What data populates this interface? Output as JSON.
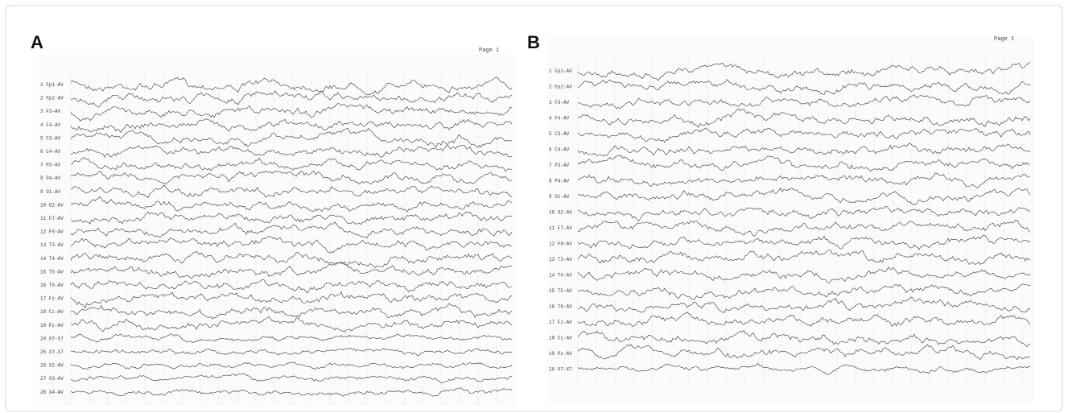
{
  "panels": [
    {
      "label": "A",
      "page": "Page 1",
      "channels": [
        "1 Fp1-AV",
        "2 Fp2-AV",
        "3 F3-AV",
        "4 F4-AV",
        "5 C3-AV",
        "6 C4-AV",
        "7 P3-AV",
        "8 P4-AV",
        "9 O1-AV",
        "10 O2-AV",
        "11 F7-AV",
        "12 F8-AV",
        "13 T3-AV",
        "14 T4-AV",
        "15 T5-AV",
        "16 T6-AV",
        "17 Fz-AV",
        "18 Cz-AV",
        "19 Pz-AV",
        "20 X7-X7",
        "25 X7-X7",
        "26 X2-AV",
        "27 X3-AV",
        "28 X4-AV"
      ]
    },
    {
      "label": "B",
      "page": "Page 1",
      "channels": [
        "1 Fp1-AV",
        "2 Fp2-AV",
        "3 F3-AV",
        "4 F4-AV",
        "5 C3-AV",
        "6 C4-AV",
        "7 P3-AV",
        "8 P4-AV",
        "9 O1-AV",
        "10 O2-AV",
        "11 F7-AV",
        "12 F8-AV",
        "13 T3-AV",
        "14 T4-AV",
        "15 T5-AV",
        "16 T6-AV",
        "17 Fz-AV",
        "18 Cz-AV",
        "19 Pz-AV",
        "20 X7-X7"
      ]
    }
  ]
}
